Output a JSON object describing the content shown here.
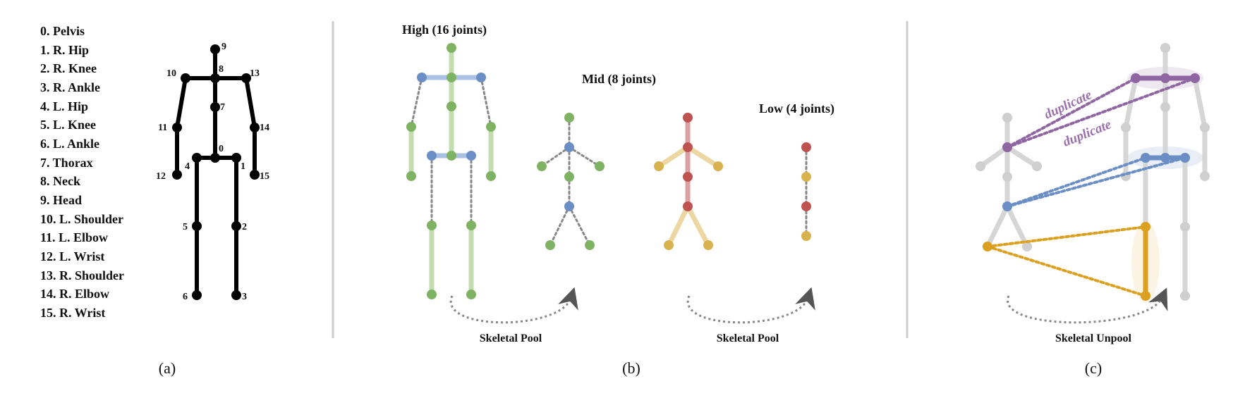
{
  "colors": {
    "black": "#000000",
    "divider": "#cccccc",
    "green": "#7fb263",
    "green_light": "#c3dcb0",
    "blue": "#6b8fc4",
    "blue_light": "#a9c1e3",
    "red": "#bf5350",
    "red_light": "#dba0a0",
    "yellow": "#d8b24e",
    "yellow_light": "#ecd6a1",
    "purple": "#8f66a2",
    "orange": "#dca020",
    "gray": "#cfcfcf",
    "dotted": "#888888"
  },
  "panel_a": {
    "joint_list": [
      "0. Pelvis",
      "1. R. Hip",
      "2. R. Knee",
      "3. R. Ankle",
      "4. L. Hip",
      "5. L. Knee",
      "6. L. Ankle",
      "7. Thorax",
      "8. Neck",
      "9. Head",
      "10. L. Shoulder",
      "11. L. Elbow",
      "12. L. Wrist",
      "13. R. Shoulder",
      "14. R. Elbow",
      "15. R. Wrist"
    ],
    "joint_numbers": [
      "0",
      "1",
      "2",
      "3",
      "4",
      "5",
      "6",
      "7",
      "8",
      "9",
      "10",
      "11",
      "12",
      "13",
      "14",
      "15"
    ],
    "caption": "(a)"
  },
  "panel_b": {
    "title_high": "High (16 joints)",
    "title_mid": "Mid (8 joints)",
    "title_low": "Low (4 joints)",
    "pool_label_1": "Skeletal Pool",
    "pool_label_2": "Skeletal Pool",
    "caption": "(b)"
  },
  "panel_c": {
    "duplicate_1": "duplicate",
    "duplicate_2": "duplicate",
    "unpool_label": "Skeletal Unpool",
    "caption": "(c)"
  }
}
